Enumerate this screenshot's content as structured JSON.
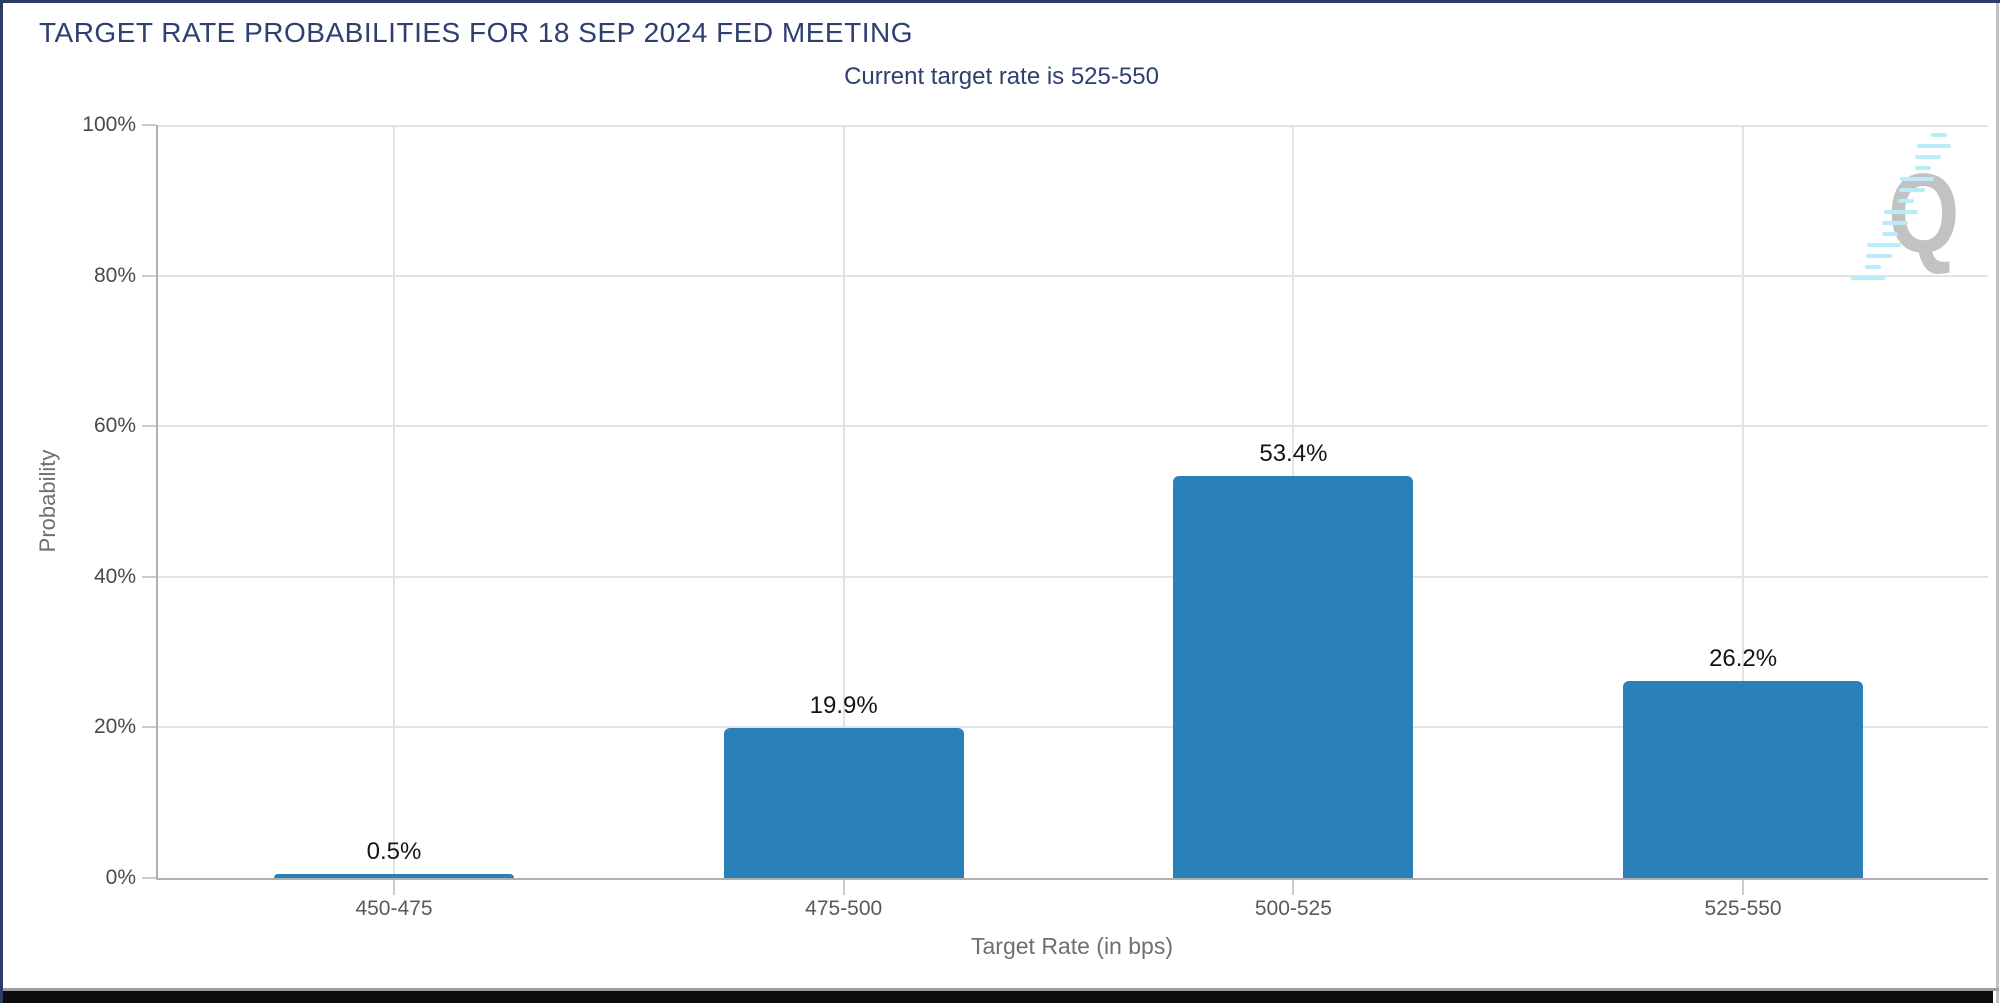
{
  "chart_data": {
    "type": "bar",
    "title": "TARGET RATE PROBABILITIES FOR 18 SEP 2024 FED MEETING",
    "subtitle": "Current target rate is 525-550",
    "categories": [
      "450-475",
      "475-500",
      "500-525",
      "525-550"
    ],
    "values": [
      0.5,
      19.9,
      53.4,
      26.2
    ],
    "bar_labels": [
      "0.5%",
      "19.9%",
      "53.4%",
      "26.2%"
    ],
    "xlabel": "Target Rate (in bps)",
    "ylabel": "Probability",
    "ylim": [
      0,
      100
    ],
    "yticks": [
      0,
      20,
      40,
      60,
      80,
      100
    ],
    "ytick_labels": [
      "0%",
      "20%",
      "40%",
      "60%",
      "80%",
      "100%"
    ],
    "grid": true,
    "legend_position": "none",
    "bar_color": "#2a80b9"
  },
  "colors": {
    "title_text": "#2e4070",
    "bar": "#2a80b9",
    "tick_text": "#595959",
    "axis_title_text": "#6f6f6f",
    "gridline": "#e3e3e3",
    "axis_line": "#b0b0b0",
    "accent_border": "#2b3a66",
    "watermark_gray": "#c2c2c2",
    "watermark_cyan": "#b8ecf7"
  },
  "watermark": {
    "letter": "Q"
  }
}
